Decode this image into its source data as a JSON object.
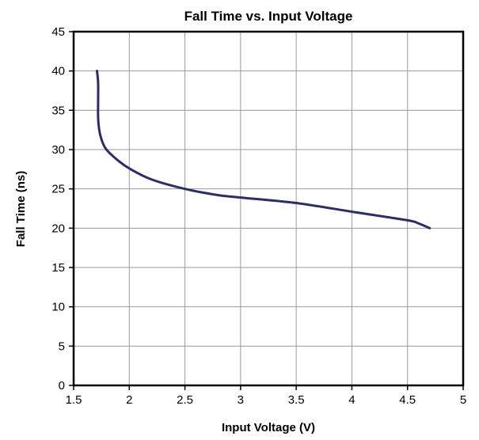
{
  "chart_data": {
    "type": "line",
    "title": "Fall Time vs. Input Voltage",
    "xlabel": "Input Voltage (V)",
    "ylabel": "Fall Time (ns)",
    "xlim": [
      1.5,
      5
    ],
    "ylim": [
      0,
      45
    ],
    "x_ticks": [
      "1.5",
      "2",
      "2.5",
      "3",
      "3.5",
      "4",
      "4.5",
      "5"
    ],
    "y_ticks": [
      "0",
      "5",
      "10",
      "15",
      "20",
      "25",
      "30",
      "35",
      "40",
      "45"
    ],
    "grid": true,
    "legend": "none",
    "series_color": "#2b2b6e",
    "series": [
      {
        "x": [
          1.71,
          1.72,
          1.72,
          1.72,
          1.73,
          1.75,
          1.78,
          1.82,
          1.9,
          2.0,
          2.2,
          2.5,
          2.8,
          3.0,
          3.5,
          4.0,
          4.5,
          4.6,
          4.7
        ],
        "y": [
          40.0,
          38.5,
          36.0,
          34.0,
          32.5,
          31.3,
          30.3,
          29.6,
          28.6,
          27.6,
          26.2,
          25.0,
          24.2,
          23.9,
          23.2,
          22.1,
          21.0,
          20.6,
          20.0
        ]
      }
    ]
  }
}
